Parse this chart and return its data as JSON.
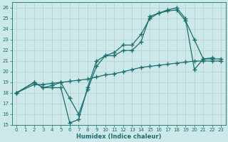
{
  "xlabel": "Humidex (Indice chaleur)",
  "bg_color": "#cde8e8",
  "grid_color": "#b0d0d0",
  "line_color": "#1a6e6e",
  "xlim": [
    -0.5,
    23.5
  ],
  "ylim": [
    15,
    26.5
  ],
  "xticks": [
    0,
    1,
    2,
    3,
    4,
    5,
    6,
    7,
    8,
    9,
    10,
    11,
    12,
    13,
    14,
    15,
    16,
    17,
    18,
    19,
    20,
    21,
    22,
    23
  ],
  "yticks": [
    15,
    16,
    17,
    18,
    19,
    20,
    21,
    22,
    23,
    24,
    25,
    26
  ],
  "line1_x": [
    0,
    2,
    3,
    4,
    5,
    6,
    7,
    8,
    9,
    10,
    11,
    12,
    13,
    14,
    15,
    16,
    17,
    18,
    19,
    20,
    21,
    22,
    23
  ],
  "line1_y": [
    18,
    19,
    18.5,
    18.5,
    18.5,
    15.2,
    15.5,
    18.5,
    21,
    21.5,
    21.5,
    22,
    22,
    22.8,
    25.2,
    25.5,
    25.8,
    26.0,
    25.0,
    20.2,
    21.2,
    21.2,
    21.2
  ],
  "line2_x": [
    0,
    2,
    3,
    4,
    5,
    6,
    7,
    8,
    9,
    10,
    11,
    12,
    13,
    14,
    15,
    16,
    17,
    18,
    19,
    20,
    21,
    22
  ],
  "line2_y": [
    18,
    19,
    18.5,
    18.7,
    19.0,
    17.5,
    16.0,
    18.3,
    20.5,
    21.5,
    21.8,
    22.5,
    22.5,
    23.5,
    25.0,
    25.5,
    25.7,
    25.8,
    24.8,
    23.0,
    21.2,
    21.3
  ],
  "line3_x": [
    0,
    2,
    3,
    4,
    5,
    6,
    7,
    8,
    9,
    10,
    11,
    12,
    13,
    14,
    15,
    16,
    17,
    18,
    19,
    20,
    21,
    22,
    23
  ],
  "line3_y": [
    18,
    18.8,
    18.8,
    18.9,
    19.0,
    19.1,
    19.2,
    19.3,
    19.5,
    19.7,
    19.8,
    20.0,
    20.2,
    20.4,
    20.5,
    20.6,
    20.7,
    20.8,
    20.9,
    21.0,
    21.0,
    21.0,
    21.0
  ]
}
